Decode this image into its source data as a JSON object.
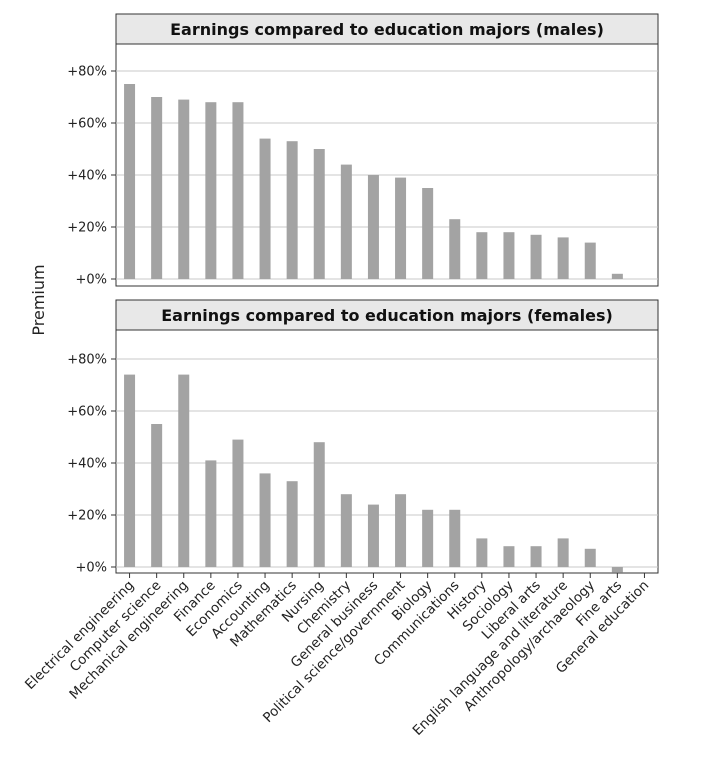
{
  "chart_data": {
    "type": "bar",
    "ylabel": "Premium",
    "ylim": [
      -3,
      86
    ],
    "yticks": [
      "+0%",
      "+20%",
      "+40%",
      "+60%",
      "+80%"
    ],
    "ytick_values": [
      0,
      20,
      40,
      60,
      80
    ],
    "grid": "horizontal",
    "bar_color": "#a3a3a3",
    "categories": [
      "Electrical engineering",
      "Computer science",
      "Mechanical engineering",
      "Finance",
      "Economics",
      "Accounting",
      "Mathematics",
      "Nursing",
      "Chemistry",
      "General business",
      "Political science/government",
      "Biology",
      "Communications",
      "History",
      "Sociology",
      "Liberal arts",
      "English language and literature",
      "Anthropology/archaeology",
      "Fine arts",
      "General education"
    ],
    "panels": [
      {
        "title": "Earnings compared to education majors (males)",
        "values": [
          75,
          70,
          69,
          68,
          68,
          54,
          53,
          50,
          44,
          40,
          39,
          35,
          23,
          18,
          18,
          17,
          16,
          14,
          2,
          0
        ]
      },
      {
        "title": "Earnings compared to education majors (females)",
        "values": [
          74,
          55,
          74,
          41,
          49,
          36,
          33,
          48,
          28,
          24,
          28,
          22,
          22,
          11,
          8,
          8,
          11,
          7,
          -2,
          0
        ]
      }
    ]
  }
}
